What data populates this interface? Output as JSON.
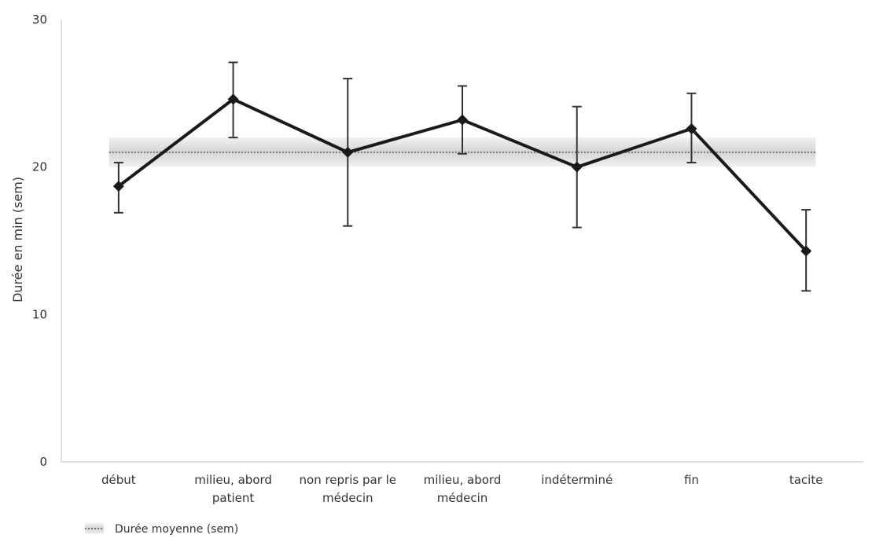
{
  "chart_data": {
    "type": "line",
    "title": "",
    "xlabel": "",
    "ylabel": "Durée en min (sem)",
    "ylim": [
      0,
      30
    ],
    "yticks": [
      0,
      10,
      20,
      30
    ],
    "categories": [
      [
        "début"
      ],
      [
        "milieu, abord",
        "patient"
      ],
      [
        "non repris par le",
        "médecin"
      ],
      [
        "milieu, abord",
        "médecin"
      ],
      [
        "indéterminé"
      ],
      [
        "fin"
      ],
      [
        "tacite"
      ]
    ],
    "series": [
      {
        "values": [
          18.7,
          24.6,
          21.0,
          23.2,
          20.0,
          22.6,
          14.3
        ],
        "error_high": [
          20.3,
          27.1,
          26.0,
          25.5,
          24.1,
          25.0,
          17.1
        ],
        "error_low": [
          16.9,
          22.0,
          16.0,
          20.9,
          15.9,
          20.3,
          11.6
        ],
        "color": "#1a1a1a",
        "marker": "diamond"
      }
    ],
    "reference": {
      "name": "Durée moyenne (sem)",
      "mean": 21.0,
      "band": [
        20.0,
        22.0
      ],
      "line_color": "#777777",
      "band_color": "#d9d9d9"
    },
    "grid": false,
    "legend_position": "bottom-left"
  }
}
